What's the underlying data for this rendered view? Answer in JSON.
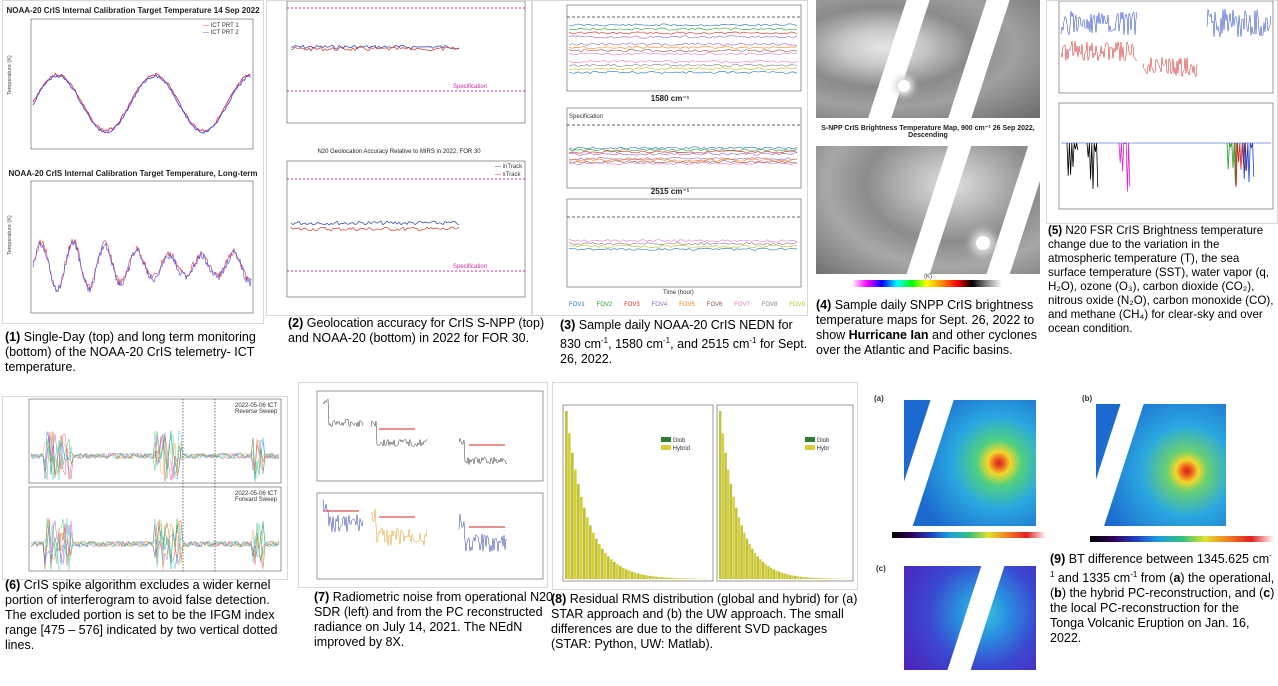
{
  "header": {
    "title": ""
  },
  "panels": {
    "p1": {
      "top_title": "NOAA-20 CrIS Internal Calibration Target Temperature 14 Sep 2022",
      "bottom_title": "NOAA-20 CrIS Internal Calibration Target Temperature, Long-term",
      "legend": [
        "ICT PRT 1",
        "ICT PRT 2"
      ],
      "caption_num": "(1)",
      "caption": "Single-Day (top) and long term monitoring (bottom) of the NOAA-20 CrIS telemetry- ICT temperature."
    },
    "p2": {
      "plot2_title": "N20 Geolocation Accuracy Relative to MIRS in 2022, FOR 30",
      "spec_label": "Specification",
      "legend": [
        "inTrack",
        "xTrack"
      ],
      "caption_num": "(2)",
      "caption": "Geolocation accuracy for CrIS S-NPP (top) and NOAA-20 (bottom) in 2022 for FOR 30."
    },
    "p3": {
      "title_1580": "1580 cm⁻¹",
      "title_2515": "2515 cm⁻¹",
      "spec_label": "Specification",
      "xlabel": "Time (hour)",
      "fov_labels": [
        "FOV1",
        "FOV2",
        "FOV3",
        "FOV4",
        "FOV5",
        "FOV6",
        "FOV7",
        "FOV8",
        "FOV9"
      ],
      "caption_num": "(3)",
      "caption_a": "Sample daily NOAA-20 CrIS NEDN for 830 cm",
      "caption_b": ", 1580 cm",
      "caption_c": ", and 2515 cm",
      "caption_d": " for Sept. 26, 2022.",
      "sup": "-1"
    },
    "p4": {
      "map_title": "S-NPP CrIS Brightness Temperature Map, 900 cm⁻¹ 26 Sep 2022, Descending",
      "colorbar_label": "(K)",
      "caption_num": "(4)",
      "caption_a": "Sample daily SNPP CrIS brightness temperature maps for Sept. 26, 2022 to show ",
      "caption_bold": "Hurricane Ian",
      "caption_b": " and other cyclones over the Atlantic and Pacific basins."
    },
    "p5": {
      "caption_num": "(5)",
      "caption": "N20 FSR CrIS Brightness temperature change due to the variation in the atmospheric temperature (T), the sea surface temperature (SST), water vapor (q, H₂O), ozone (O₃), carbon dioxide (CO₂), nitrous oxide (N₂O), carbon monoxide (CO), and methane (CH₄) for clear-sky and over ocean condition."
    },
    "p6": {
      "label_top": "2022-05-06 ICT Reverse Sweep",
      "label_bottom": "2022-05-06 ICT Forward Sweep",
      "caption_num": "(6)",
      "caption": "CrIS spike algorithm excludes a wider kernel portion of interferogram to avoid false detection. The excluded portion is set to be the IFGM index range [475 – 576] indicated by two vertical dotted lines."
    },
    "p7": {
      "caption_num": "(7)",
      "caption": "Radiometric noise from operational N20 SDR (left) and from the PC reconstructed radiance on July 14, 2021. The NEdN improved by 8X."
    },
    "p8": {
      "legend_a": [
        "Glob",
        "Hybrid"
      ],
      "legend_b": [
        "Glob",
        "Hybr"
      ],
      "caption_num": "(8)",
      "caption": "Residual RMS distribution (global and hybrid) for (a) STAR approach and (b) the UW approach. The small differences are due to the different SVD packages (STAR: Python, UW: Matlab)."
    },
    "p9": {
      "label_a": "(a)",
      "label_b": "(b)",
      "label_c": "(c)",
      "caption_num": "(9)",
      "caption_a": "BT difference between 1345.625 cm",
      "caption_b": " and 1335 cm",
      "caption_c": " from (",
      "bold_a": "a",
      "caption_d": ") the operational, (",
      "bold_b": "b",
      "caption_e": ") the hybrid PC-reconstruction, and (",
      "bold_c": "c",
      "caption_f": ") the local PC-reconstruction for the Tonga Volcanic Eruption on Jan. 16, 2022.",
      "sup": "-1"
    }
  },
  "colors": {
    "ict1": "#d9334a",
    "ict2": "#4a4ad8",
    "spec": "#cc2a9a",
    "intrack": "#2a3aa8",
    "xtrack": "#c83a2a",
    "hist_green": "#2e7d32",
    "hist_yellow": "#d6cf3a"
  }
}
